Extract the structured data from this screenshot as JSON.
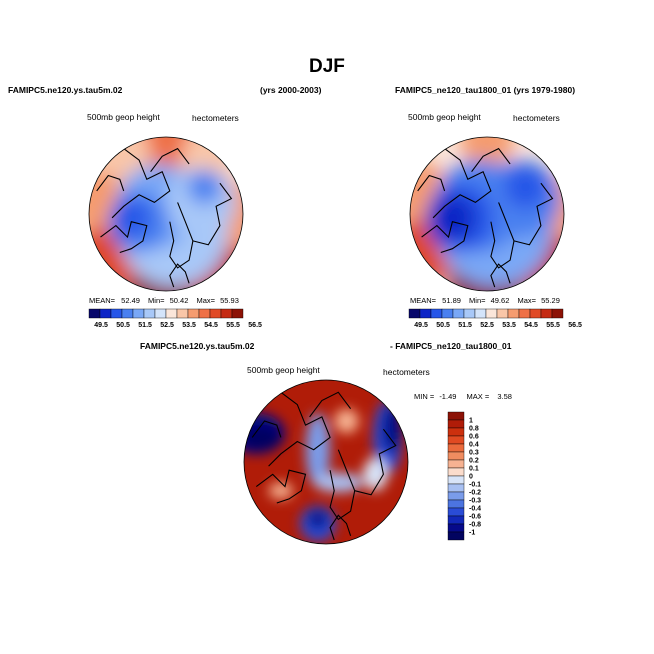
{
  "figure": {
    "title": "DJF",
    "left_header": "FAMIPC5.ne120.ys.tau5m.02",
    "left_years": "(yrs 2000-2003)",
    "right_header": "FAMIPC5_ne120_tau1800_01 (yrs 1979-1980)",
    "diff_header_left": "FAMIPC5.ne120.ys.tau5m.02",
    "diff_header_right": "- FAMIPC5_ne120_tau1800_01"
  },
  "chart_data": [
    {
      "type": "heatmap",
      "projection": "polar-stereographic-north",
      "variable_label": "500mb geop height",
      "units_label": "hectometers",
      "stats": {
        "mean_label": "MEAN=",
        "mean": "52.49",
        "min_label": "Min=",
        "min": "50.42",
        "max_label": "Max=",
        "max": "55.93"
      },
      "levels": [
        "49.5",
        "50.5",
        "51.5",
        "52.5",
        "53.5",
        "54.5",
        "55.5",
        "56.5"
      ],
      "palette": [
        "#08086b",
        "#0d25c6",
        "#2656e8",
        "#4a80f0",
        "#7aa8f6",
        "#a8c8f8",
        "#d4e4fa",
        "#fbe6da",
        "#f9c6a8",
        "#f59c70",
        "#ee7046",
        "#e04a26",
        "#c42a12",
        "#8c1206"
      ]
    },
    {
      "type": "heatmap",
      "projection": "polar-stereographic-north",
      "variable_label": "500mb geop height",
      "units_label": "hectometers",
      "stats": {
        "mean_label": "MEAN=",
        "mean": "51.89",
        "min_label": "Min=",
        "min": "49.62",
        "max_label": "Max=",
        "max": "55.29"
      },
      "levels": [
        "49.5",
        "50.5",
        "51.5",
        "52.5",
        "53.5",
        "54.5",
        "55.5",
        "56.5"
      ],
      "palette": [
        "#08086b",
        "#0d25c6",
        "#2656e8",
        "#4a80f0",
        "#7aa8f6",
        "#a8c8f8",
        "#d4e4fa",
        "#fbe6da",
        "#f9c6a8",
        "#f59c70",
        "#ee7046",
        "#e04a26",
        "#c42a12",
        "#8c1206"
      ]
    },
    {
      "type": "heatmap",
      "projection": "polar-stereographic-north",
      "variable_label": "500mb geop height",
      "units_label": "hectometers",
      "stats": {
        "min_label": "MIN =",
        "min": "-1.49",
        "max_label": "MAX =",
        "max": "3.58"
      },
      "levels": [
        "1",
        "0.8",
        "0.6",
        "0.4",
        "0.3",
        "0.2",
        "0.1",
        "0",
        "-0.1",
        "-0.2",
        "-0.3",
        "-0.4",
        "-0.6",
        "-0.8",
        "-1"
      ],
      "palette": [
        "#8c1206",
        "#b01c08",
        "#cc300e",
        "#e04a22",
        "#ea6a3c",
        "#f08c60",
        "#f6b292",
        "#fbdccc",
        "#d8e4f8",
        "#a8c0f2",
        "#7a9cea",
        "#4c74e0",
        "#2a4cd6",
        "#1228b8",
        "#060a8a",
        "#020460"
      ]
    }
  ]
}
